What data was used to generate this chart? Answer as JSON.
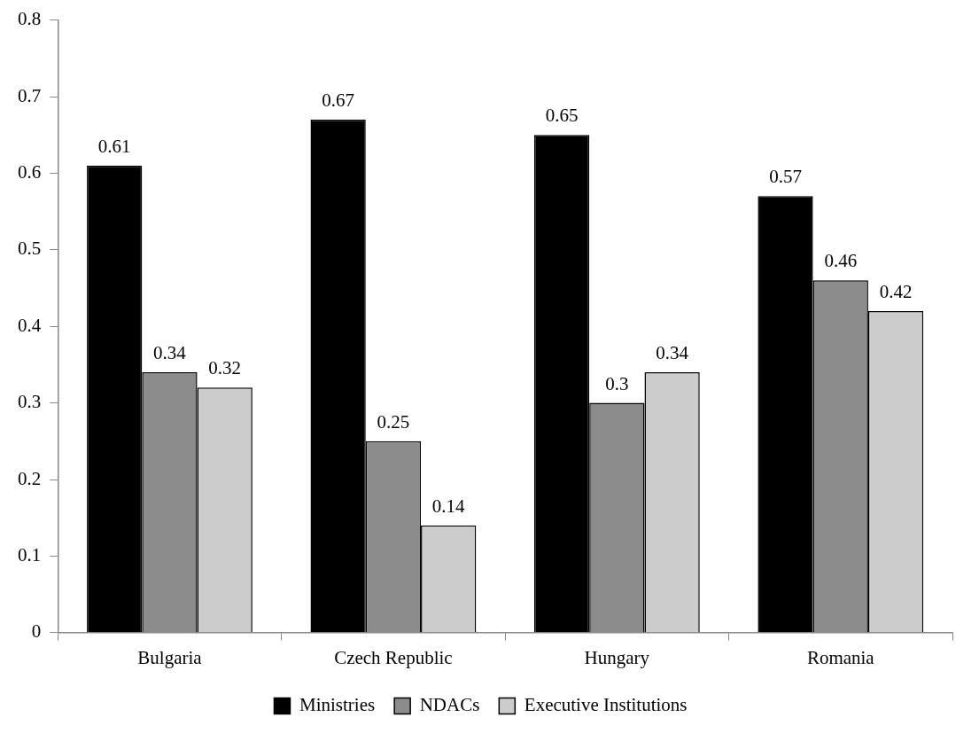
{
  "chart_data": {
    "type": "bar",
    "categories": [
      "Bulgaria",
      "Czech Republic",
      "Hungary",
      "Romania"
    ],
    "series": [
      {
        "name": "Ministries",
        "color": "#000000",
        "values": [
          0.61,
          0.67,
          0.65,
          0.57
        ]
      },
      {
        "name": "NDACs",
        "color": "#8c8c8c",
        "values": [
          0.34,
          0.25,
          0.3,
          0.46
        ]
      },
      {
        "name": "Executive Institutions",
        "color": "#cccccc",
        "values": [
          0.32,
          0.14,
          0.34,
          0.42
        ]
      }
    ],
    "ylim": [
      0,
      0.8
    ],
    "yticks": [
      0,
      0.1,
      0.2,
      0.3,
      0.4,
      0.5,
      0.6,
      0.7,
      0.8
    ],
    "grid": false,
    "legend": "bottom",
    "data_labels": true
  }
}
